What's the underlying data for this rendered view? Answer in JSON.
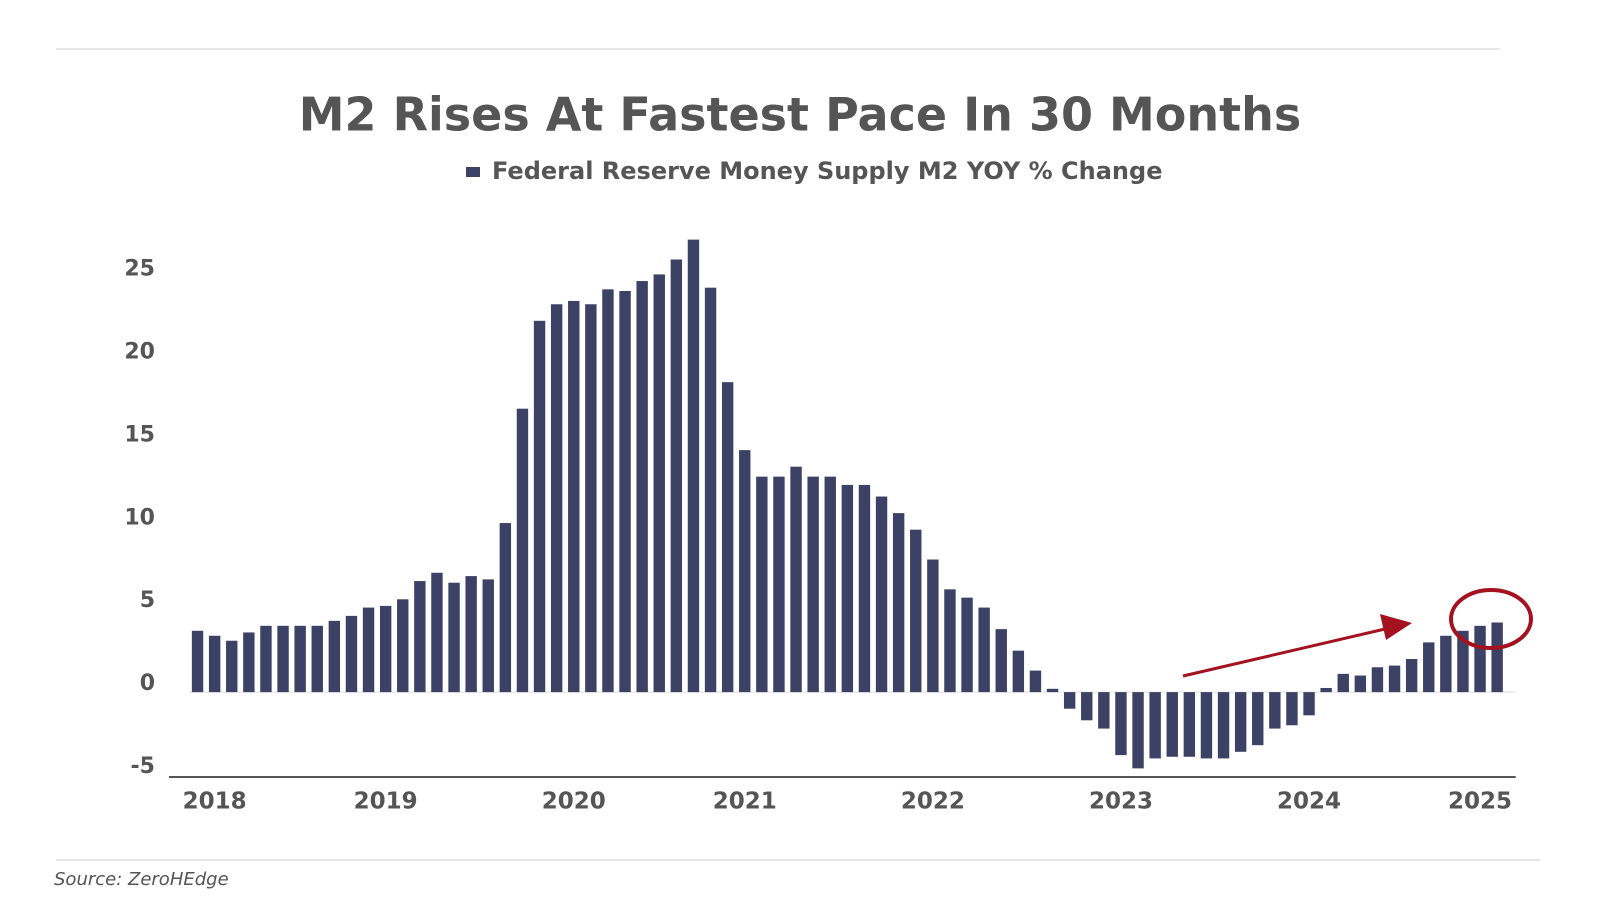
{
  "chart_data": {
    "type": "bar",
    "title": "M2 Rises At Fastest Pace In 30 Months",
    "source": "Source: ZeroHEdge",
    "series": [
      {
        "name": "Federal Reserve Money Supply M2 YOY % Change",
        "color": "#3c4265",
        "values": [
          3.7,
          3.4,
          3.1,
          3.6,
          4.0,
          4.0,
          4.0,
          4.0,
          4.3,
          4.6,
          5.1,
          5.2,
          5.6,
          6.7,
          7.2,
          6.6,
          7.0,
          6.8,
          10.2,
          17.1,
          22.4,
          23.4,
          23.6,
          23.4,
          24.3,
          24.2,
          24.8,
          25.2,
          26.1,
          27.3,
          24.4,
          18.7,
          14.6,
          13.0,
          13.0,
          13.6,
          13.0,
          13.0,
          12.5,
          12.5,
          11.8,
          10.8,
          9.8,
          8.0,
          6.2,
          5.7,
          5.1,
          3.8,
          2.5,
          1.3,
          0.2,
          -1.0,
          -1.7,
          -2.2,
          -3.8,
          -4.6,
          -4.0,
          -3.9,
          -3.9,
          -4.0,
          -4.0,
          -3.6,
          -3.2,
          -2.2,
          -2.0,
          -1.4,
          0.25,
          1.1,
          1.0,
          1.5,
          1.6,
          2.0,
          3.0,
          3.4,
          3.7,
          4.0,
          4.2
        ]
      }
    ],
    "categories": [
      null,
      "2018",
      null,
      null,
      null,
      null,
      null,
      null,
      null,
      null,
      null,
      "2019",
      null,
      null,
      null,
      null,
      null,
      null,
      null,
      null,
      null,
      null,
      "2020",
      null,
      null,
      null,
      null,
      null,
      null,
      null,
      null,
      null,
      "2021",
      null,
      null,
      null,
      null,
      null,
      null,
      null,
      null,
      null,
      null,
      "2022",
      null,
      null,
      null,
      null,
      null,
      null,
      null,
      null,
      null,
      null,
      "2023",
      null,
      null,
      null,
      null,
      null,
      null,
      null,
      null,
      null,
      null,
      "2024",
      null,
      null,
      null,
      null,
      null,
      null,
      null,
      null,
      null,
      "2025",
      null
    ],
    "ylim": [
      -5,
      28
    ],
    "yticks": [
      -5,
      0,
      5,
      10,
      15,
      20,
      25
    ]
  }
}
